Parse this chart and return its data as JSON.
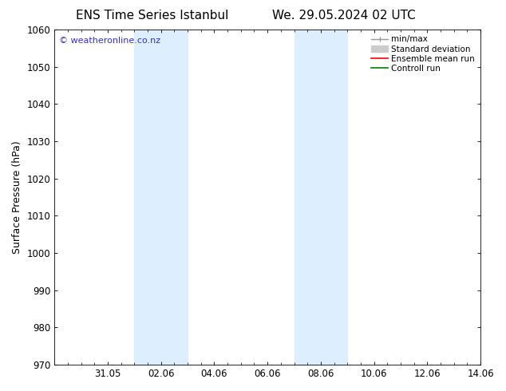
{
  "title_left": "ENS Time Series Istanbul",
  "title_right": "We. 29.05.2024 02 UTC",
  "ylabel": "Surface Pressure (hPa)",
  "ylim": [
    970,
    1060
  ],
  "yticks": [
    970,
    980,
    990,
    1000,
    1010,
    1020,
    1030,
    1040,
    1050,
    1060
  ],
  "xlim": [
    0,
    16
  ],
  "xtick_labels": [
    "31.05",
    "02.06",
    "04.06",
    "06.06",
    "08.06",
    "10.06",
    "12.06",
    "14.06"
  ],
  "xtick_positions": [
    2,
    4,
    6,
    8,
    10,
    12,
    14,
    16
  ],
  "shaded_bands": [
    {
      "x_start": 3.0,
      "x_end": 5.0
    },
    {
      "x_start": 9.0,
      "x_end": 11.0
    }
  ],
  "shaded_color": "#ddeeff",
  "watermark_text": "© weatheronline.co.nz",
  "watermark_color": "#3333bb",
  "bg_color": "#ffffff",
  "title_fontsize": 11,
  "axis_label_fontsize": 9,
  "tick_fontsize": 8.5,
  "legend_fontsize": 7.5
}
